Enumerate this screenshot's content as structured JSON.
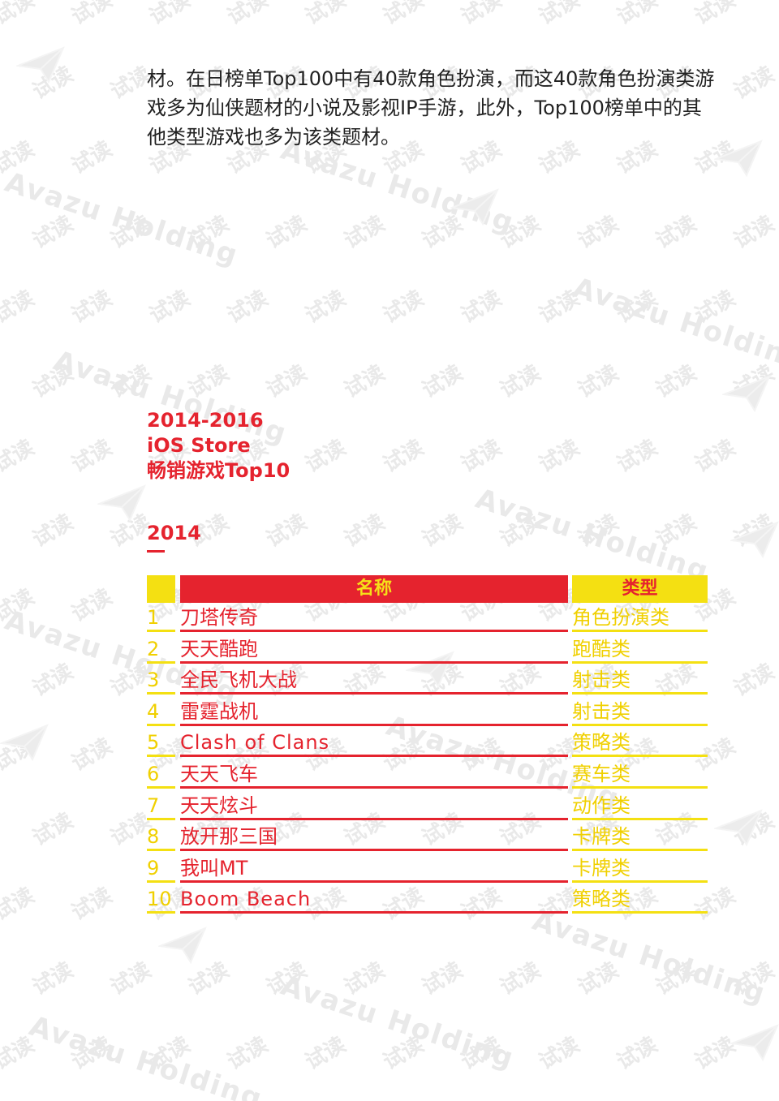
{
  "intro_paragraph": {
    "lines": [
      "材。在日榜单Top100中有40款角色扮演，而这40款角色扮演类游",
      "戏多为仙侠题材的小说及影视IP手游，此外，Top100榜单中的其",
      "他类型游戏也多为该类题材。"
    ]
  },
  "section_title": {
    "line1": "2014-2016",
    "line2": "iOS Store",
    "line3": "畅销游戏Top10"
  },
  "year_heading": "2014",
  "table": {
    "headers": {
      "rank": "",
      "name": "名称",
      "type": "类型"
    },
    "rows": [
      {
        "rank": "1",
        "name": "刀塔传奇",
        "type": "角色扮演类"
      },
      {
        "rank": "2",
        "name": "天天酷跑",
        "type": "跑酷类"
      },
      {
        "rank": "3",
        "name": "全民飞机大战",
        "type": "射击类"
      },
      {
        "rank": "4",
        "name": "雷霆战机",
        "type": "射击类"
      },
      {
        "rank": "5",
        "name": "Clash of Clans",
        "type": "策略类"
      },
      {
        "rank": "6",
        "name": "天天飞车",
        "type": "赛车类"
      },
      {
        "rank": "7",
        "name": "天天炫斗",
        "type": "动作类"
      },
      {
        "rank": "8",
        "name": "放开那三国",
        "type": "卡牌类"
      },
      {
        "rank": "9",
        "name": "我叫MT",
        "type": "卡牌类"
      },
      {
        "rank": "10",
        "name": "Boom Beach",
        "type": "策略类"
      }
    ]
  },
  "watermark": {
    "small_text": "试读",
    "big_text": "Avazu Holding"
  },
  "colors": {
    "accent_red": "#e5232e",
    "accent_yellow": "#f4e012",
    "body_text": "#222222",
    "watermark": "#e9e9e9"
  }
}
